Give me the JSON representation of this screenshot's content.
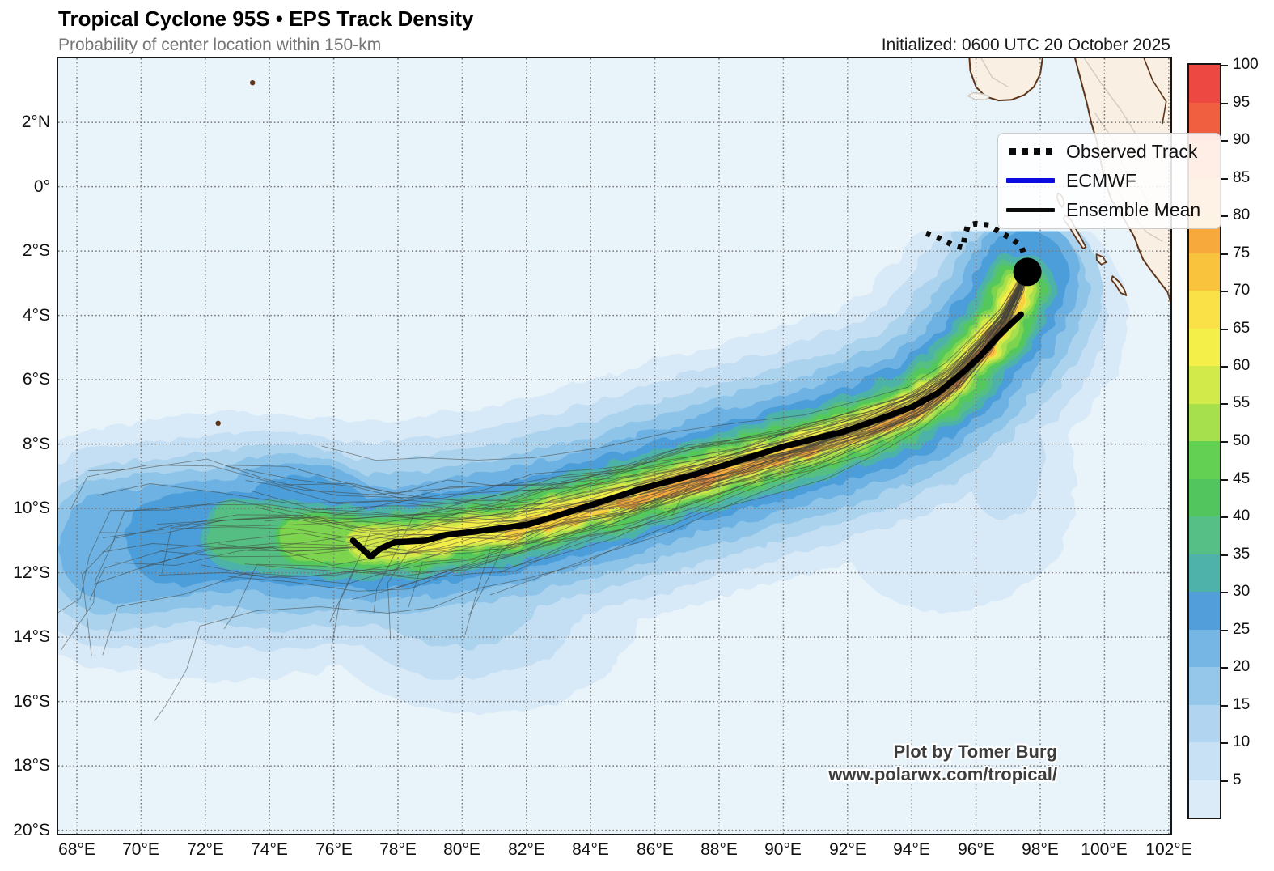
{
  "header": {
    "title": "Tropical Cyclone 95S • EPS Track Density",
    "subtitle": "Probability of center location within 150-km",
    "initialized": "Initialized: 0600 UTC 20 October 2025"
  },
  "credits": {
    "line1": "Plot by Tomer Burg",
    "line2": "www.polarwx.com/tropical/"
  },
  "legend": {
    "observed_label": "Observed Track",
    "ecmwf_label": "ECMWF",
    "mean_label": "Ensemble Mean",
    "ecmwf_color": "#0b0bdf",
    "track_color": "#0b0b0b"
  },
  "chart_data": {
    "type": "heatmap",
    "subtype": "tropical-cyclone-track-density-map",
    "title": "Tropical Cyclone 95S • EPS Track Density",
    "subtitle": "Probability of center location within 150-km",
    "initialized": "Initialized: 0600 UTC 20 October 2025",
    "units": "probability (%) of center location within 150 km",
    "map_bounds": {
      "lon_min": 67.42,
      "lon_max": 102.06,
      "lat_min": -20.12,
      "lat_max": 3.99
    },
    "axes": {
      "x_tick_lons": [
        68,
        70,
        72,
        74,
        76,
        78,
        80,
        82,
        84,
        86,
        88,
        90,
        92,
        94,
        96,
        98,
        100,
        102
      ],
      "x_tick_labels": [
        "68°E",
        "70°E",
        "72°E",
        "74°E",
        "76°E",
        "78°E",
        "80°E",
        "82°E",
        "84°E",
        "86°E",
        "88°E",
        "90°E",
        "92°E",
        "94°E",
        "96°E",
        "98°E",
        "100°E",
        "102°E"
      ],
      "y_tick_lats": [
        2,
        0,
        -2,
        -4,
        -6,
        -8,
        -10,
        -12,
        -14,
        -16,
        -18,
        -20
      ],
      "y_tick_labels": [
        "2°N",
        "0°",
        "2°S",
        "4°S",
        "6°S",
        "8°S",
        "10°S",
        "12°S",
        "14°S",
        "16°S",
        "18°S",
        "20°S"
      ],
      "grid": "dotted 2-degree graticule"
    },
    "colors": {
      "ocean": "#e9f3fa",
      "land_fill": "#f9efe2",
      "coast_stroke": "#5d3418",
      "admin_stroke": "#cfc9c1",
      "grid_stroke": "#777777",
      "ensemble_member": "#41423a",
      "mean_track": "#000000",
      "ecmwf": "#0b0bdf",
      "observed": "#0b0b0b"
    },
    "colorbar": {
      "tick_values": [
        5,
        10,
        15,
        20,
        25,
        30,
        35,
        40,
        45,
        50,
        55,
        60,
        65,
        70,
        75,
        80,
        85,
        90,
        95,
        100
      ],
      "segment_colors_bottom_to_top": [
        "#dcebf8",
        "#c9e1f5",
        "#b1d5f0",
        "#95c7eb",
        "#75b6e5",
        "#519eda",
        "#4fb2aa",
        "#55bf85",
        "#52c55e",
        "#63cf53",
        "#a6e04d",
        "#d3ea4b",
        "#f5ef4a",
        "#fbe148",
        "#f9c33e",
        "#f7a93c",
        "#f5943d",
        "#f37c3e",
        "#f05f40",
        "#ee4843"
      ]
    },
    "current_position": {
      "lon": 97.6,
      "lat": -2.65,
      "marker": "black dot"
    },
    "observed_track": [
      [
        94.45,
        -1.45
      ],
      [
        94.9,
        -1.62
      ],
      [
        95.25,
        -1.8
      ],
      [
        95.6,
        -1.9
      ],
      [
        95.65,
        -1.55
      ],
      [
        95.75,
        -1.2
      ],
      [
        96.0,
        -1.15
      ],
      [
        96.4,
        -1.2
      ],
      [
        96.75,
        -1.42
      ],
      [
        97.05,
        -1.58
      ],
      [
        97.4,
        -1.83
      ],
      [
        97.52,
        -2.18
      ],
      [
        97.6,
        -2.65
      ]
    ],
    "mean_track": [
      [
        76.6,
        -11.0
      ],
      [
        77.15,
        -11.5
      ],
      [
        77.45,
        -11.25
      ],
      [
        77.9,
        -11.05
      ],
      [
        78.85,
        -11.0
      ],
      [
        79.5,
        -10.82
      ],
      [
        80.15,
        -10.75
      ],
      [
        81.1,
        -10.63
      ],
      [
        82.05,
        -10.5
      ],
      [
        83.2,
        -10.15
      ],
      [
        84.25,
        -9.82
      ],
      [
        85.6,
        -9.38
      ],
      [
        87.3,
        -8.93
      ],
      [
        88.5,
        -8.55
      ],
      [
        90.1,
        -8.05
      ],
      [
        91.85,
        -7.62
      ],
      [
        93.0,
        -7.22
      ],
      [
        94.0,
        -6.85
      ],
      [
        94.8,
        -6.42
      ],
      [
        95.5,
        -5.85
      ],
      [
        96.1,
        -5.3
      ],
      [
        96.65,
        -4.7
      ],
      [
        97.1,
        -4.25
      ],
      [
        97.4,
        -3.97
      ]
    ],
    "ecmwf_track_note": "ECMWF deterministic track coincides with ensemble mean (hidden beneath black line)",
    "density": {
      "spine": [
        [
          69.2,
          -11.2
        ],
        [
          71.0,
          -11.0
        ],
        [
          73.0,
          -10.8
        ],
        [
          75.0,
          -10.95
        ],
        [
          77.0,
          -11.1
        ],
        [
          78.5,
          -11.05
        ],
        [
          80.0,
          -10.8
        ],
        [
          81.5,
          -10.6
        ],
        [
          83.0,
          -10.2
        ],
        [
          85.0,
          -9.7
        ],
        [
          87.0,
          -9.1
        ],
        [
          89.0,
          -8.55
        ],
        [
          91.0,
          -8.0
        ],
        [
          92.8,
          -7.4
        ],
        [
          94.2,
          -6.8
        ],
        [
          95.3,
          -6.0
        ],
        [
          96.2,
          -5.0
        ],
        [
          96.9,
          -4.1
        ],
        [
          97.35,
          -3.2
        ],
        [
          97.5,
          -2.75
        ]
      ],
      "levels": [
        {
          "v": 5,
          "color": "#d8e9f7",
          "w": 7.6,
          "spans": [
            [
              0,
              17
            ]
          ],
          "blobs": [
            [
              72.8,
              -11.2,
              6.5,
              4.2
            ],
            [
              80.5,
              -13.2,
              5.0,
              3.2
            ],
            [
              97.1,
              -9.2,
              2.0,
              3.2
            ],
            [
              98.1,
              -5.2,
              1.35,
              2.3
            ],
            [
              95.0,
              -11.0,
              3.0,
              2.2
            ]
          ]
        },
        {
          "v": 10,
          "color": "#c4def3",
          "w": 6.3,
          "spans": [
            [
              0,
              17
            ]
          ],
          "blobs": [
            [
              74.0,
              -11.0,
              5.2,
              3.4
            ],
            [
              80.0,
              -12.8,
              3.8,
              2.5
            ],
            [
              96.9,
              -8.4,
              1.2,
              2.0
            ]
          ]
        },
        {
          "v": 15,
          "color": "#abd3ee",
          "w": 5.2,
          "spans": [
            [
              0,
              18
            ]
          ],
          "blobs": [
            [
              74.3,
              -10.9,
              4.4,
              2.9
            ],
            [
              79.8,
              -12.3,
              2.8,
              2.0
            ]
          ]
        },
        {
          "v": 20,
          "color": "#8fc4e9",
          "w": 4.3,
          "spans": [
            [
              0,
              18
            ]
          ],
          "blobs": [
            [
              74.5,
              -10.8,
              3.7,
              2.5
            ]
          ]
        },
        {
          "v": 25,
          "color": "#6db2e2",
          "w": 3.5,
          "spans": [
            [
              0,
              19
            ]
          ],
          "blobs": [
            [
              74.8,
              -10.7,
              3.1,
              2.1
            ]
          ]
        },
        {
          "v": 30,
          "color": "#4c9eda",
          "w": 2.8,
          "spans": [
            [
              1,
              19
            ]
          ],
          "blobs": [
            [
              75.0,
              -10.7,
              2.5,
              1.7
            ]
          ]
        },
        {
          "v": 35,
          "color": "#4eb2a8",
          "w": 2.3,
          "spans": [
            [
              2,
              18
            ]
          ],
          "blobs": []
        },
        {
          "v": 40,
          "color": "#55bf83",
          "w": 1.9,
          "spans": [
            [
              2,
              18
            ]
          ],
          "blobs": []
        },
        {
          "v": 45,
          "color": "#55c85c",
          "w": 1.6,
          "spans": [
            [
              3,
              18
            ]
          ],
          "blobs": []
        },
        {
          "v": 50,
          "color": "#7cd44f",
          "w": 1.32,
          "spans": [
            [
              3,
              18
            ]
          ],
          "blobs": []
        },
        {
          "v": 55,
          "color": "#a7df4d",
          "w": 1.1,
          "spans": [
            [
              4,
              18
            ]
          ],
          "blobs": []
        },
        {
          "v": 60,
          "color": "#d3e94a",
          "w": 0.9,
          "spans": [
            [
              4,
              18
            ]
          ],
          "blobs": []
        },
        {
          "v": 65,
          "color": "#f3ee49",
          "w": 0.68,
          "spans": [
            [
              5,
              18
            ]
          ],
          "blobs": []
        },
        {
          "v": 70,
          "color": "#f9d03f",
          "w": 0.5,
          "dy": 0.1,
          "spans": [
            [
              7,
              18
            ]
          ],
          "blobs": []
        },
        {
          "v": 75,
          "color": "#f7ab3c",
          "w": 0.34,
          "dy": 0.15,
          "spans": [
            [
              9,
              12
            ],
            [
              13,
              17
            ]
          ],
          "blobs": []
        },
        {
          "v": 80,
          "color": "#f5923d",
          "w": 0.22,
          "dy": 0.1,
          "spans": [
            [
              15,
              17
            ]
          ],
          "blobs": [
            [
              87.6,
              -9.05,
              0.3,
              0.2
            ]
          ]
        },
        {
          "v": 85,
          "color": "#f37d3e",
          "w": 0.12,
          "dy": 0.1,
          "spans": [
            [
              15,
              16
            ]
          ],
          "blobs": []
        }
      ]
    },
    "ensemble": {
      "count": 55,
      "seed": 11,
      "width": 0.9,
      "opacity": 0.55
    },
    "geo": {
      "mainland": [
        [
          99.03,
          4.2
        ],
        [
          99.2,
          3.55
        ],
        [
          99.45,
          2.6
        ],
        [
          99.6,
          1.95
        ],
        [
          99.75,
          1.45
        ],
        [
          99.9,
          0.7
        ],
        [
          100.02,
          0.15
        ],
        [
          100.22,
          -0.42
        ],
        [
          100.46,
          -0.76
        ],
        [
          100.7,
          -1.16
        ],
        [
          100.93,
          -1.56
        ],
        [
          101.06,
          -1.92
        ],
        [
          101.2,
          -2.26
        ],
        [
          101.46,
          -2.62
        ],
        [
          101.6,
          -2.8
        ],
        [
          101.97,
          -3.28
        ],
        [
          102.2,
          -4.05
        ],
        [
          102.2,
          4.2
        ]
      ],
      "nw_land": [
        [
          95.78,
          4.2
        ],
        [
          95.82,
          3.6
        ],
        [
          96.0,
          3.1
        ],
        [
          96.3,
          2.8
        ],
        [
          96.7,
          2.68
        ],
        [
          97.1,
          2.7
        ],
        [
          97.5,
          2.85
        ],
        [
          97.8,
          3.1
        ],
        [
          98.0,
          3.5
        ],
        [
          98.1,
          4.2
        ]
      ],
      "islands": [
        [
          [
            98.78,
            -0.88
          ],
          [
            98.95,
            -1.02
          ],
          [
            99.1,
            -1.3
          ],
          [
            99.3,
            -1.65
          ],
          [
            99.42,
            -1.88
          ],
          [
            99.33,
            -1.92
          ],
          [
            99.12,
            -1.6
          ],
          [
            98.9,
            -1.25
          ],
          [
            98.72,
            -1.0
          ]
        ],
        [
          [
            98.55,
            -0.2
          ],
          [
            98.68,
            -0.3
          ],
          [
            98.75,
            -0.5
          ],
          [
            98.68,
            -0.64
          ],
          [
            98.58,
            -0.5
          ],
          [
            98.52,
            -0.32
          ]
        ],
        [
          [
            99.75,
            -2.1
          ],
          [
            99.95,
            -2.18
          ],
          [
            100.05,
            -2.35
          ],
          [
            99.9,
            -2.42
          ],
          [
            99.76,
            -2.28
          ]
        ],
        [
          [
            100.25,
            -2.78
          ],
          [
            100.45,
            -2.95
          ],
          [
            100.62,
            -3.2
          ],
          [
            100.68,
            -3.38
          ],
          [
            100.5,
            -3.3
          ],
          [
            100.35,
            -3.05
          ],
          [
            100.22,
            -2.9
          ]
        ]
      ],
      "gray_island": [
        [
          95.75,
          2.82
        ],
        [
          95.95,
          2.72
        ],
        [
          96.3,
          2.7
        ],
        [
          96.42,
          2.8
        ],
        [
          96.2,
          2.88
        ],
        [
          95.9,
          2.92
        ]
      ],
      "small_islands": [
        [
          72.4,
          -7.35
        ],
        [
          73.47,
          3.23
        ]
      ],
      "admin_lines": [
        [
          [
            99.7,
            2.3
          ],
          [
            100.3,
            1.4
          ],
          [
            100.6,
            0.6
          ],
          [
            101.0,
            0.1
          ],
          [
            101.4,
            -0.5
          ]
        ],
        [
          [
            100.4,
            -0.1
          ],
          [
            100.9,
            -0.9
          ],
          [
            101.3,
            -1.4
          ],
          [
            101.8,
            -1.7
          ]
        ],
        [
          [
            96.1,
            4.1
          ],
          [
            96.5,
            3.4
          ],
          [
            97.0,
            3.1
          ]
        ],
        [
          [
            99.3,
            4.1
          ],
          [
            99.9,
            3.2
          ],
          [
            100.5,
            2.4
          ],
          [
            101.0,
            1.6
          ],
          [
            101.3,
            0.8
          ]
        ]
      ],
      "border_line": [
        [
          101.15,
          4.2
        ],
        [
          101.5,
          3.3
        ],
        [
          101.92,
          2.65
        ],
        [
          101.8,
          1.95
        ]
      ]
    }
  }
}
